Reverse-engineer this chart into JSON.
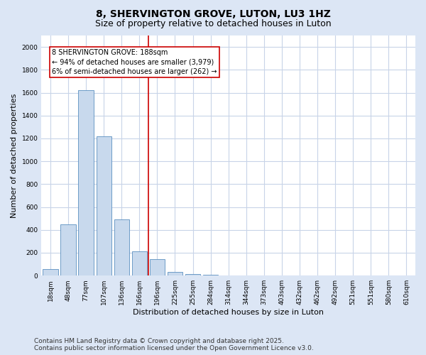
{
  "title": "8, SHERVINGTON GROVE, LUTON, LU3 1HZ",
  "subtitle": "Size of property relative to detached houses in Luton",
  "xlabel": "Distribution of detached houses by size in Luton",
  "ylabel": "Number of detached properties",
  "categories": [
    "18sqm",
    "48sqm",
    "77sqm",
    "107sqm",
    "136sqm",
    "166sqm",
    "196sqm",
    "225sqm",
    "255sqm",
    "284sqm",
    "314sqm",
    "344sqm",
    "373sqm",
    "403sqm",
    "432sqm",
    "462sqm",
    "492sqm",
    "521sqm",
    "551sqm",
    "580sqm",
    "610sqm"
  ],
  "values": [
    60,
    450,
    1620,
    1220,
    490,
    215,
    145,
    30,
    15,
    5,
    0,
    0,
    0,
    0,
    0,
    0,
    0,
    0,
    0,
    0,
    0
  ],
  "bar_color": "#c8d9ed",
  "bar_edge_color": "#5a8fc0",
  "vline_color": "#cc0000",
  "annotation_text": "8 SHERVINGTON GROVE: 188sqm\n← 94% of detached houses are smaller (3,979)\n6% of semi-detached houses are larger (262) →",
  "annotation_box_color": "#ffffff",
  "annotation_box_edge": "#cc0000",
  "ylim": [
    0,
    2100
  ],
  "yticks": [
    0,
    200,
    400,
    600,
    800,
    1000,
    1200,
    1400,
    1600,
    1800,
    2000
  ],
  "fig_bg_color": "#dce6f5",
  "plot_bg_color": "#ffffff",
  "grid_color": "#c8d4e8",
  "footer_line1": "Contains HM Land Registry data © Crown copyright and database right 2025.",
  "footer_line2": "Contains public sector information licensed under the Open Government Licence v3.0.",
  "title_fontsize": 10,
  "subtitle_fontsize": 9,
  "annot_fontsize": 7,
  "tick_fontsize": 6.5,
  "label_fontsize": 8,
  "footer_fontsize": 6.5
}
